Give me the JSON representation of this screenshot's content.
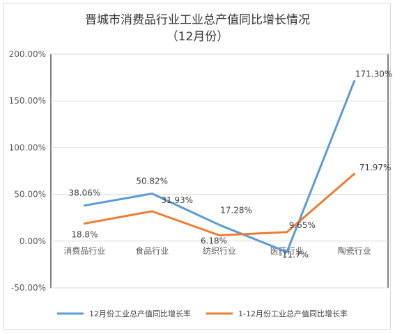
{
  "chart_data": {
    "type": "line",
    "title_line1": "晋城市消费品行业工业总产值同比增长情况",
    "title_line2": "（12月份）",
    "categories": [
      "消费品行业",
      "食品行业",
      "纺织行业",
      "医药行业",
      "陶瓷行业"
    ],
    "y_ticks": [
      "200.00%",
      "150.00%",
      "100.00%",
      "50.00%",
      "0.00%",
      "-50.00%"
    ],
    "ylim": [
      -50,
      200
    ],
    "series": [
      {
        "name": "12月份工业总产值同比增长率",
        "color": "#5b9bd5",
        "values": [
          38.06,
          50.82,
          17.28,
          -11.7,
          171.3
        ],
        "labels": [
          "38.06%",
          "50.82%",
          "17.28%",
          "-11.7%",
          "171.30%"
        ]
      },
      {
        "name": "1-12月份工业总产值同比增长率",
        "color": "#ed7d31",
        "values": [
          18.8,
          31.93,
          6.18,
          9.65,
          71.97
        ],
        "labels": [
          "18.8%",
          "31.93%",
          "6.18%",
          "9.65%",
          "71.97%"
        ]
      }
    ]
  }
}
